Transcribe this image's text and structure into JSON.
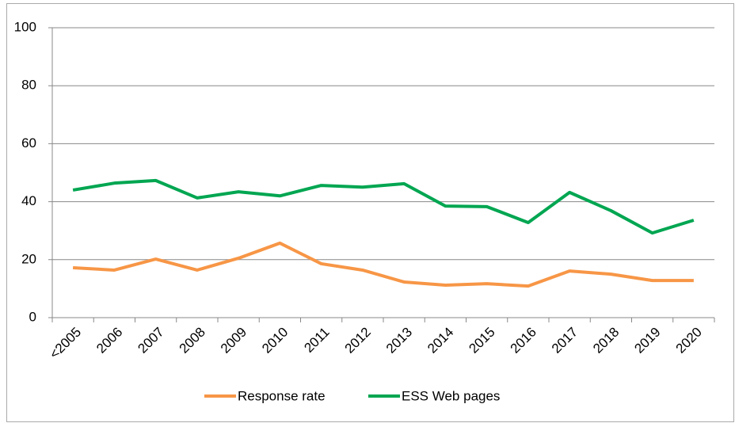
{
  "chart_data": {
    "type": "line",
    "categories": [
      "<2005",
      "2006",
      "2007",
      "2008",
      "2009",
      "2010",
      "2011",
      "2012",
      "2013",
      "2014",
      "2015",
      "2016",
      "2017",
      "2018",
      "2019",
      "2020"
    ],
    "series": [
      {
        "name": "Response rate",
        "color": "#f79646",
        "values": [
          17.2,
          16.4,
          20.2,
          16.4,
          20.5,
          25.7,
          18.6,
          16.4,
          12.3,
          11.2,
          11.7,
          10.9,
          16.1,
          15.0,
          12.8,
          12.8
        ]
      },
      {
        "name": "ESS Web pages",
        "color": "#00a651",
        "values": [
          44.0,
          46.4,
          47.3,
          41.3,
          43.4,
          42.0,
          45.6,
          45.0,
          46.2,
          38.5,
          38.3,
          32.8,
          43.2,
          36.9,
          29.2,
          33.6
        ]
      }
    ],
    "ylim": [
      0,
      100
    ],
    "yticks": [
      0,
      20,
      40,
      60,
      80,
      100
    ],
    "grid": true,
    "legend": "bottom"
  }
}
